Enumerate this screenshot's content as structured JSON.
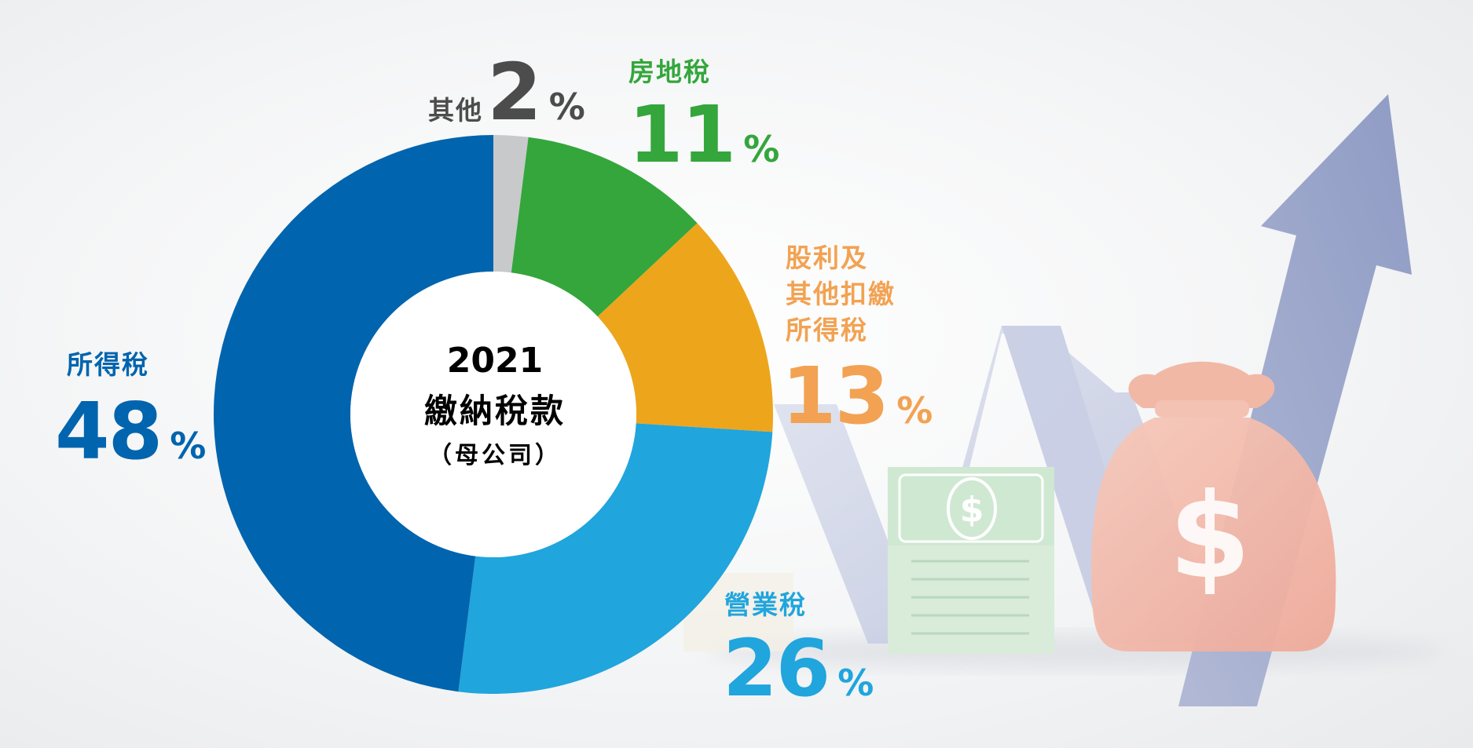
{
  "colors": {
    "income": "#0064ae",
    "business": "#20a5dd",
    "dividend": "#eda51c",
    "dividend_label": "#f2a252",
    "property": "#34a63c",
    "other": "#c8c9cb",
    "other_label": "#4c4c4c"
  },
  "center": {
    "year": "2021",
    "title": "繳納稅款",
    "subtitle": "（母公司）"
  },
  "chart_data": {
    "type": "pie",
    "donut": true,
    "title": "",
    "unit": "%",
    "slices": [
      {
        "name": "其他",
        "value": 2,
        "color": "#c8c9cb"
      },
      {
        "name": "房地稅",
        "value": 11,
        "color": "#34a63c"
      },
      {
        "name": "股利及其他扣繳所得稅",
        "value": 13,
        "color": "#eda51c"
      },
      {
        "name": "營業稅",
        "value": 26,
        "color": "#20a5dd"
      },
      {
        "name": "所得稅",
        "value": 48,
        "color": "#0064ae"
      }
    ]
  },
  "labels": {
    "other": {
      "name": "其他",
      "value": "2",
      "pct": "%"
    },
    "property": {
      "name": "房地稅",
      "value": "11",
      "pct": "%"
    },
    "dividend": {
      "line1": "股利及",
      "line2": "其他扣繳",
      "line3": "所得稅",
      "value": "13",
      "pct": "%"
    },
    "business": {
      "name": "營業稅",
      "value": "26",
      "pct": "%"
    },
    "income": {
      "name": "所得稅",
      "value": "48",
      "pct": "%"
    }
  },
  "illustration": {
    "icons": [
      "growth-arrow-icon",
      "money-bag-icon",
      "banknote-stack-icon",
      "zigzag-ribbon-icon"
    ],
    "currency_symbol": "$"
  }
}
